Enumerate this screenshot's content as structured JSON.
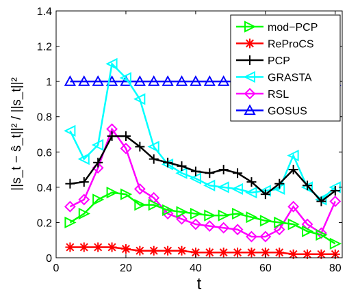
{
  "chart_data": {
    "type": "line",
    "title": "",
    "xlabel": "t",
    "ylabel_text": "||s_t − ŝ_t||² / ||s_t||²",
    "xlim": [
      0,
      82
    ],
    "ylim": [
      0,
      1.4
    ],
    "xticks": [
      0,
      20,
      40,
      60,
      80
    ],
    "xtick_labels": [
      "0",
      "20",
      "40",
      "60",
      "80"
    ],
    "yticks": [
      0,
      0.2,
      0.4,
      0.6,
      0.8,
      1,
      1.2,
      1.4
    ],
    "ytick_labels": [
      "0",
      "0.2",
      "0.4",
      "0.6",
      "0.8",
      "1",
      "1.2",
      "1.4"
    ],
    "grid": false,
    "legend_position": "top-right",
    "x": [
      4,
      8,
      12,
      16,
      20,
      24,
      28,
      32,
      36,
      40,
      44,
      48,
      52,
      56,
      60,
      64,
      68,
      72,
      76,
      80
    ],
    "series": [
      {
        "name": "mod−PCP",
        "color": "#00ff00",
        "marker": "triangle-right",
        "values": [
          0.2,
          0.25,
          0.33,
          0.37,
          0.36,
          0.3,
          0.3,
          0.27,
          0.26,
          0.25,
          0.24,
          0.24,
          0.25,
          0.23,
          0.21,
          0.2,
          0.19,
          0.15,
          0.13,
          0.08
        ]
      },
      {
        "name": "ReProCS",
        "color": "#ff0000",
        "marker": "asterisk",
        "values": [
          0.06,
          0.06,
          0.06,
          0.06,
          0.05,
          0.04,
          0.04,
          0.04,
          0.04,
          0.03,
          0.03,
          0.03,
          0.03,
          0.03,
          0.03,
          0.03,
          0.02,
          0.02,
          0.02,
          0.02
        ]
      },
      {
        "name": "PCP",
        "color": "#000000",
        "marker": "plus",
        "values": [
          0.42,
          0.43,
          0.54,
          0.69,
          0.69,
          0.63,
          0.56,
          0.54,
          0.52,
          0.49,
          0.48,
          0.5,
          0.48,
          0.43,
          0.36,
          0.42,
          0.5,
          0.41,
          0.32,
          0.38
        ]
      },
      {
        "name": "GRASTA",
        "color": "#00ffff",
        "marker": "triangle-left",
        "values": [
          0.72,
          0.56,
          0.64,
          1.1,
          1.02,
          0.9,
          0.63,
          0.53,
          0.48,
          0.45,
          0.41,
          0.4,
          0.39,
          0.37,
          0.38,
          0.39,
          0.58,
          0.4,
          0.33,
          0.4
        ]
      },
      {
        "name": "RSL",
        "color": "#ff00ff",
        "marker": "diamond",
        "values": [
          0.29,
          0.33,
          0.51,
          0.73,
          0.62,
          0.39,
          0.34,
          0.25,
          0.22,
          0.19,
          0.18,
          0.17,
          0.16,
          0.12,
          0.12,
          0.16,
          0.29,
          0.19,
          0.14,
          0.32
        ]
      },
      {
        "name": "GOSUS",
        "color": "#0000ff",
        "marker": "triangle-up",
        "values": [
          1,
          1,
          1,
          1,
          1,
          1,
          1,
          1,
          1,
          1,
          1,
          1,
          1,
          1,
          1,
          1,
          1,
          1,
          1,
          1
        ]
      }
    ]
  }
}
